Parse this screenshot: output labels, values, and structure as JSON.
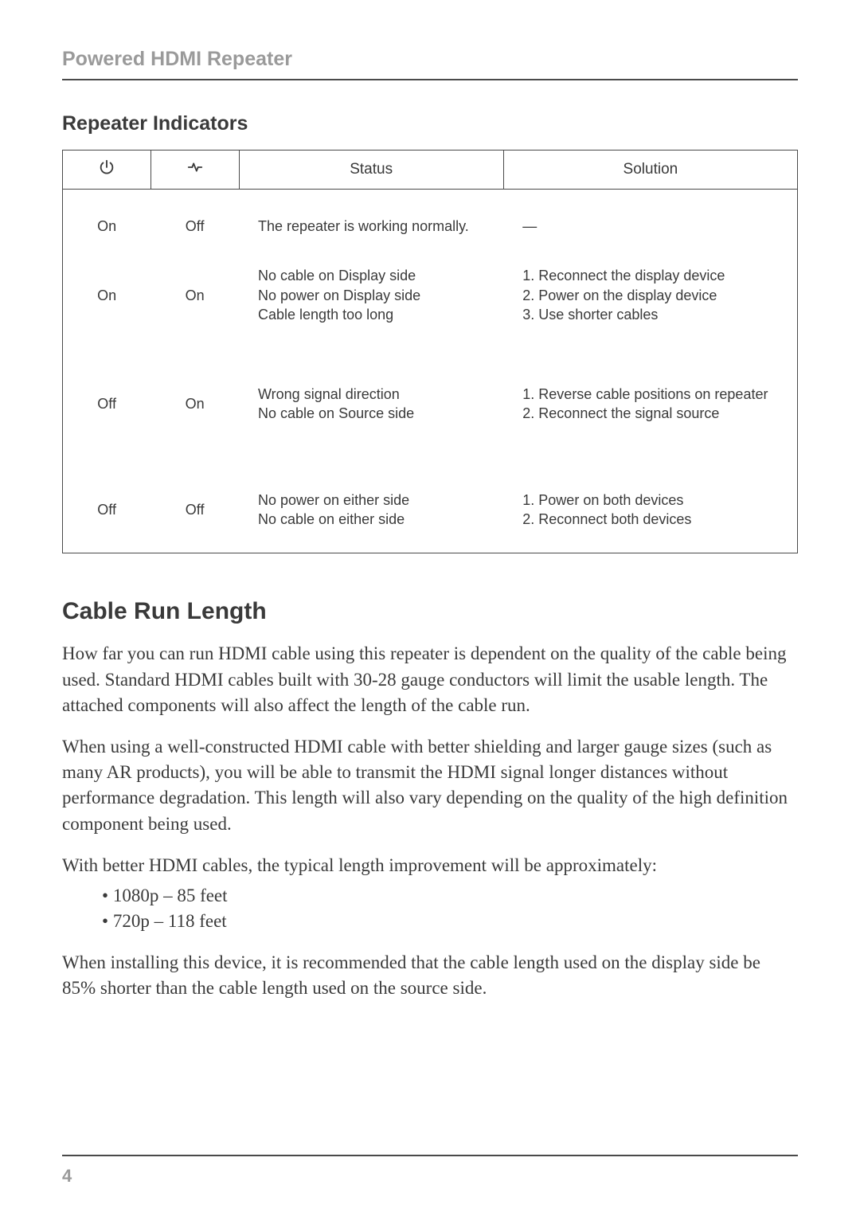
{
  "header": {
    "title": "Powered HDMI Repeater"
  },
  "indicators": {
    "heading": "Repeater Indicators",
    "columns": {
      "power_icon": "power-icon",
      "signal_icon": "signal-icon",
      "status": "Status",
      "solution": "Solution"
    },
    "rows": [
      {
        "power": "On",
        "signal": "Off",
        "status": "The repeater is working normally.",
        "solution": "—"
      },
      {
        "power": "On",
        "signal": "On",
        "status": "No cable on Display side\nNo power on Display side\nCable length too long",
        "solution": "1. Reconnect the display device\n2. Power on the display device\n3. Use shorter cables"
      },
      {
        "power": "Off",
        "signal": "On",
        "status": "Wrong signal direction\nNo cable on Source side",
        "solution": "1. Reverse cable positions on repeater\n2. Reconnect the signal source"
      },
      {
        "power": "Off",
        "signal": "Off",
        "status": "No power on either side\nNo cable on either side",
        "solution": "1. Power on both devices\n2. Reconnect both devices"
      }
    ],
    "style": {
      "border_color": "#4a4a4a",
      "header_fontsize": 19,
      "body_fontsize": 18,
      "font_family": "Segoe UI",
      "col_widths_pct": [
        12,
        12,
        36,
        40
      ]
    }
  },
  "cable": {
    "heading": "Cable Run Length",
    "p1": "How far you can run HDMI cable using this repeater is dependent on the quality of the cable being used. Standard HDMI cables built with 30-28 gauge conductors will limit the usable length. The attached components will also affect the length of the cable run.",
    "p2": "When using a well-constructed HDMI cable with better shielding and larger gauge sizes (such as many AR products), you will be able to transmit the HDMI signal longer distances without performance degradation. This length will also vary depending on the quality of the high definition component being used.",
    "p3": "With better HDMI cables, the typical length improvement will be approximately:",
    "specs": [
      "1080p – 85 feet",
      "720p – 118 feet"
    ],
    "p4": "When installing this device, it is recommended that the cable length used on the display side be 85% shorter than the cable length used on the source side."
  },
  "page_number": "4",
  "typography": {
    "body_font_family": "Georgia",
    "heading_font_family": "Helvetica Neue",
    "body_fontsize": 23,
    "section_heading_fontsize": 25,
    "major_heading_fontsize": 30,
    "text_color": "#3a3a3a",
    "muted_color": "#9a9a9a",
    "rule_color": "#4a4a4a",
    "background_color": "#ffffff"
  }
}
